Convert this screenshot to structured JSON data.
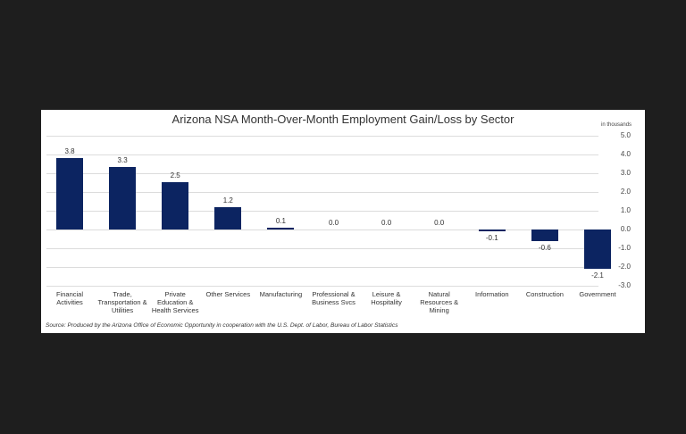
{
  "chart_data": {
    "type": "bar",
    "title": "Arizona NSA Month-Over-Month  Employment Gain/Loss by Sector",
    "units_label": "in thousands",
    "categories": [
      "Financial\nActivities",
      "Trade,\nTransportation &\nUtilities",
      "Private\nEducation &\nHealth Services",
      "Other Services",
      "Manufacturing",
      "Professional &\nBusiness Svcs",
      "Leisure &\nHospitality",
      "Natural\nResources &\nMining",
      "Information",
      "Construction",
      "Government"
    ],
    "values": [
      3.8,
      3.3,
      2.5,
      1.2,
      0.1,
      0.0,
      0.0,
      0.0,
      -0.1,
      -0.6,
      -2.1
    ],
    "value_labels": [
      "3.8",
      "3.3",
      "2.5",
      "1.2",
      "0.1",
      "0.0",
      "0.0",
      "0.0",
      "-0.1",
      "-0.6",
      "-2.1"
    ],
    "xlabel": "",
    "ylabel": "in thousands",
    "ylim": [
      -3.0,
      5.0
    ],
    "yticks": [
      "5.0",
      "4.0",
      "3.0",
      "2.0",
      "1.0",
      "0.0",
      "-1.0",
      "-2.0",
      "-3.0"
    ],
    "ytick_values": [
      5,
      4,
      3,
      2,
      1,
      0,
      -1,
      -2,
      -3
    ],
    "y_axis_position": "right",
    "grid": true,
    "legend": "none",
    "bar_color": "#0c2461",
    "source": "Source: Produced by the Arizona Office of Economic Opportunity in cooperation with the U.S. Dept. of Labor, Bureau of Labor Statistics"
  }
}
